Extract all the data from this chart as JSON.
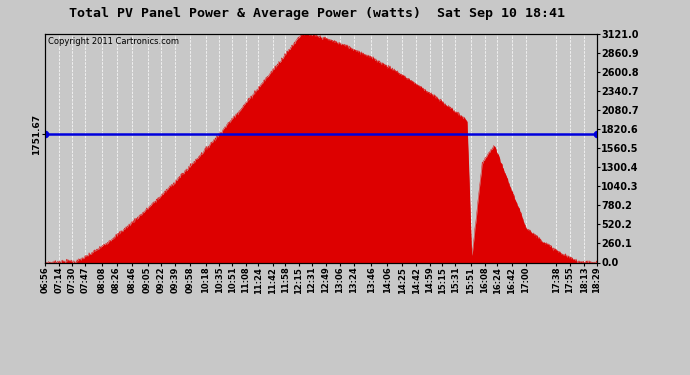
{
  "title": "Total PV Panel Power & Average Power (watts)  Sat Sep 10 18:41",
  "copyright": "Copyright 2011 Cartronics.com",
  "avg_power": 1751.67,
  "y_max": 3121.0,
  "y_min": 0.0,
  "right_yticks": [
    0.0,
    260.1,
    520.2,
    780.2,
    1040.3,
    1300.4,
    1560.5,
    1820.6,
    2080.7,
    2340.7,
    2600.8,
    2860.9,
    3121.0
  ],
  "left_ytick_label": "1751.67",
  "avg_line_color": "#0000dd",
  "fill_color": "#dd0000",
  "bg_color": "#c8c8c8",
  "plot_bg": "#c8c8c8",
  "x_labels": [
    "06:56",
    "07:14",
    "07:30",
    "07:47",
    "08:08",
    "08:26",
    "08:46",
    "09:05",
    "09:22",
    "09:39",
    "09:58",
    "10:18",
    "10:35",
    "10:51",
    "11:08",
    "11:24",
    "11:42",
    "11:58",
    "12:15",
    "12:31",
    "12:49",
    "13:06",
    "13:24",
    "13:46",
    "14:06",
    "14:25",
    "14:42",
    "14:59",
    "15:15",
    "15:31",
    "15:51",
    "16:08",
    "16:24",
    "16:42",
    "17:00",
    "17:38",
    "17:55",
    "18:13",
    "18:29"
  ]
}
